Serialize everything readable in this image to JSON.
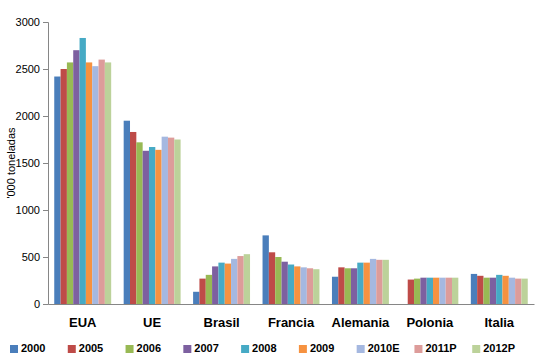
{
  "chart_data": {
    "type": "bar",
    "y_label": "'000 toneladas",
    "categories": [
      "EUA",
      "UE",
      "Brasil",
      "Francia",
      "Alemania",
      "Polonia",
      "Italia"
    ],
    "series": [
      {
        "name": "2000",
        "color": "#4a7ebb",
        "values": [
          2420,
          1950,
          130,
          730,
          290,
          null,
          320
        ]
      },
      {
        "name": "2005",
        "color": "#be4b48",
        "values": [
          2500,
          1830,
          270,
          550,
          390,
          260,
          300
        ]
      },
      {
        "name": "2006",
        "color": "#98b954",
        "values": [
          2570,
          1720,
          310,
          500,
          380,
          270,
          280
        ]
      },
      {
        "name": "2007",
        "color": "#7d60a0",
        "values": [
          2700,
          1630,
          400,
          450,
          380,
          280,
          280
        ]
      },
      {
        "name": "2008",
        "color": "#46aac5",
        "values": [
          2830,
          1670,
          440,
          420,
          440,
          280,
          310
        ]
      },
      {
        "name": "2009",
        "color": "#f69240",
        "values": [
          2570,
          1640,
          430,
          400,
          440,
          280,
          300
        ]
      },
      {
        "name": "2010E",
        "color": "#a5b8e0",
        "values": [
          2530,
          1780,
          480,
          390,
          480,
          280,
          280
        ]
      },
      {
        "name": "2011P",
        "color": "#dd9c9a",
        "values": [
          2600,
          1770,
          510,
          380,
          470,
          280,
          270
        ]
      },
      {
        "name": "2012P",
        "color": "#bcd29a",
        "values": [
          2570,
          1750,
          530,
          370,
          470,
          280,
          270
        ]
      }
    ],
    "ylim": [
      0,
      3000
    ],
    "yticks": [
      0,
      500,
      1000,
      1500,
      2000,
      2500,
      3000
    ],
    "grid": false,
    "legend": "bottom"
  }
}
